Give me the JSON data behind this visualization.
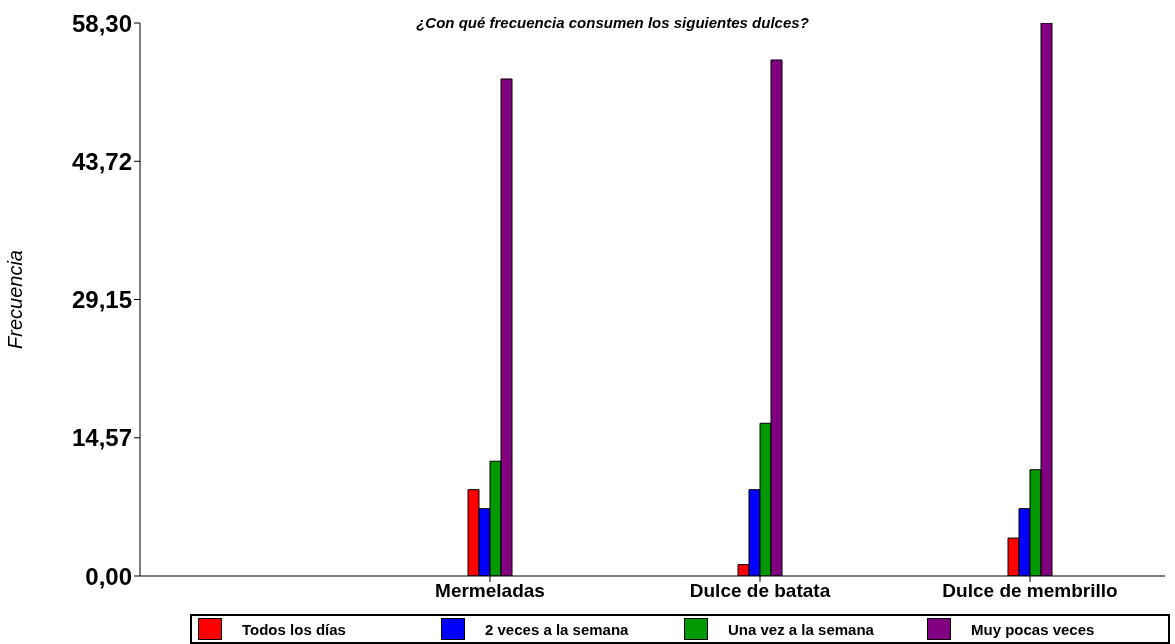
{
  "chart_data": {
    "type": "bar",
    "title": "¿Con qué frecuencia consumen los siguientes dulces?",
    "ylabel": "Frecuencia",
    "categories": [
      "Mermeladas",
      "Dulce de batata",
      "Dulce de membrillo"
    ],
    "series": [
      {
        "name": "Todos los días",
        "color": "#ff0000",
        "values": [
          9.1,
          1.2,
          4.0
        ]
      },
      {
        "name": "2 veces a la semana",
        "color": "#0000ff",
        "values": [
          7.1,
          9.1,
          7.1
        ]
      },
      {
        "name": "Una vez a la semana",
        "color": "#009900",
        "values": [
          12.1,
          16.1,
          11.2
        ]
      },
      {
        "name": "Muy pocas veces",
        "color": "#800080",
        "values": [
          52.4,
          54.4,
          58.3
        ]
      }
    ],
    "ylim": [
      0,
      58.3
    ],
    "yticks": [
      {
        "value": 0,
        "label": "0,00"
      },
      {
        "value": 14.57,
        "label": "14,57"
      },
      {
        "value": 29.15,
        "label": "29,15"
      },
      {
        "value": 43.72,
        "label": "43,72"
      },
      {
        "value": 58.3,
        "label": "58,30"
      }
    ],
    "grid": false,
    "legend": "bottom"
  }
}
